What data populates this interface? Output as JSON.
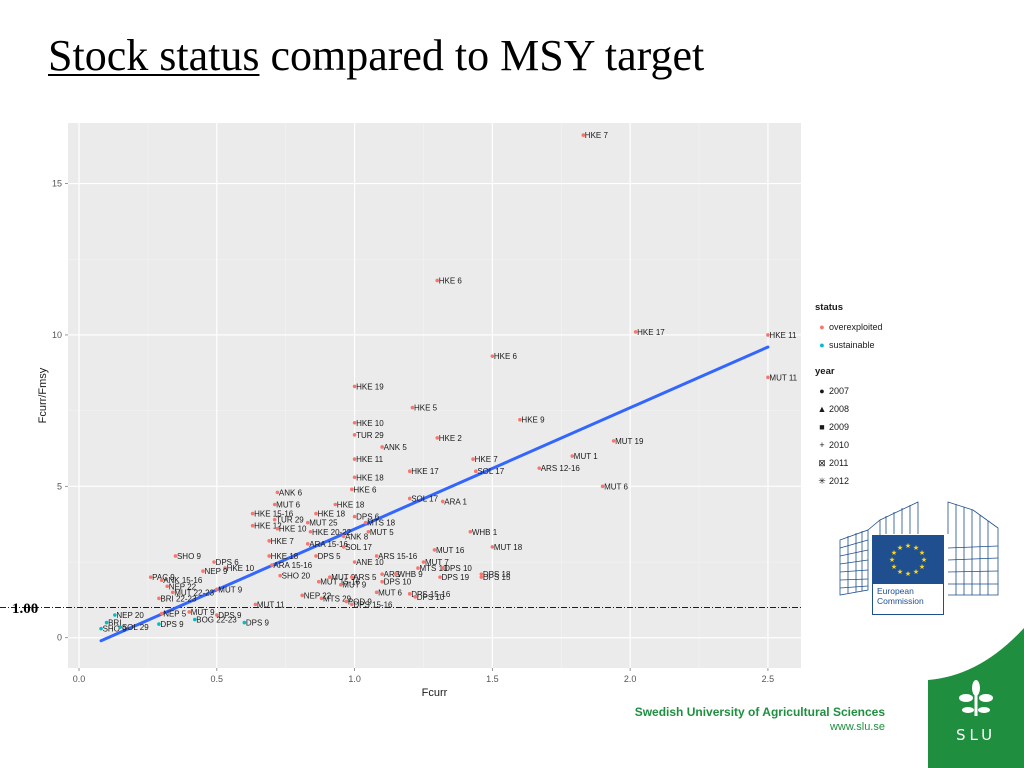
{
  "slide": {
    "title_underlined": "Stock status",
    "title_rest": " compared to MSY target",
    "ref_line_label": "1.00",
    "institution": "Swedish University of Agricultural Sciences",
    "url": "www.slu.se",
    "ec_name": "European Commission",
    "slu_logo_text": "SLU"
  },
  "legend": {
    "status_title": "status",
    "status_items": [
      {
        "label": "overexploited",
        "color": "#F8766D"
      },
      {
        "label": "sustainable",
        "color": "#00BFC4"
      }
    ],
    "year_title": "year",
    "year_items": [
      {
        "label": "2007",
        "symbol": "●"
      },
      {
        "label": "2008",
        "symbol": "▲"
      },
      {
        "label": "2009",
        "symbol": "■"
      },
      {
        "label": "2010",
        "symbol": "+"
      },
      {
        "label": "2011",
        "symbol": "⊠"
      },
      {
        "label": "2012",
        "symbol": "✳"
      }
    ]
  },
  "chart_data": {
    "type": "scatter",
    "xlabel": "Fcurr",
    "ylabel": "Fcurr/Fmsy",
    "xlim": [
      -0.04,
      2.62
    ],
    "ylim": [
      -1.0,
      17.0
    ],
    "xticks": [
      0.0,
      0.5,
      1.0,
      1.5,
      2.0,
      2.5
    ],
    "yticks": [
      0,
      5,
      10,
      15
    ],
    "xtick_labels": [
      "0.0",
      "0.5",
      "1.0",
      "1.5",
      "2.0",
      "2.5"
    ],
    "ytick_labels": [
      "0",
      "5",
      "10",
      "15"
    ],
    "reference_line": {
      "y": 1.0,
      "style": "dotdash"
    },
    "fit_line": {
      "x": [
        0.08,
        2.5
      ],
      "y": [
        -0.1,
        9.6
      ],
      "color": "#3366FF"
    },
    "background": "#EBEBEB",
    "grid": true,
    "colors": {
      "overexploited": "#F8766D",
      "sustainable": "#00BFC4"
    },
    "points": [
      {
        "x": 1.83,
        "y": 16.6,
        "label": "HKE 7",
        "status": "overexploited"
      },
      {
        "x": 1.3,
        "y": 11.8,
        "label": "HKE 6",
        "status": "overexploited"
      },
      {
        "x": 2.02,
        "y": 10.1,
        "label": "HKE 17",
        "status": "overexploited"
      },
      {
        "x": 2.5,
        "y": 10.0,
        "label": "HKE 11",
        "status": "overexploited"
      },
      {
        "x": 1.5,
        "y": 9.3,
        "label": "HKE 6",
        "status": "overexploited"
      },
      {
        "x": 2.5,
        "y": 8.6,
        "label": "MUT 11",
        "status": "overexploited"
      },
      {
        "x": 1.0,
        "y": 8.3,
        "label": "HKE 19",
        "status": "overexploited"
      },
      {
        "x": 1.21,
        "y": 7.6,
        "label": "HKE 5",
        "status": "overexploited"
      },
      {
        "x": 1.0,
        "y": 7.1,
        "label": "HKE 10",
        "status": "overexploited"
      },
      {
        "x": 1.6,
        "y": 7.2,
        "label": "HKE 9",
        "status": "overexploited"
      },
      {
        "x": 1.0,
        "y": 6.7,
        "label": "TUR 29",
        "status": "overexploited"
      },
      {
        "x": 1.3,
        "y": 6.6,
        "label": "HKE 2",
        "status": "overexploited"
      },
      {
        "x": 1.1,
        "y": 6.3,
        "label": "ANK 5",
        "status": "overexploited"
      },
      {
        "x": 1.94,
        "y": 6.5,
        "label": "MUT 19",
        "status": "overexploited"
      },
      {
        "x": 1.0,
        "y": 5.9,
        "label": "HKE 11",
        "status": "overexploited"
      },
      {
        "x": 1.43,
        "y": 5.9,
        "label": "HKE 7",
        "status": "overexploited"
      },
      {
        "x": 1.79,
        "y": 6.0,
        "label": "MUT 1",
        "status": "overexploited"
      },
      {
        "x": 1.2,
        "y": 5.5,
        "label": "HKE 17",
        "status": "overexploited"
      },
      {
        "x": 1.44,
        "y": 5.5,
        "label": "SOL 17",
        "status": "overexploited"
      },
      {
        "x": 1.67,
        "y": 5.6,
        "label": "ARS 12-16",
        "status": "overexploited"
      },
      {
        "x": 1.0,
        "y": 5.3,
        "label": "HKE 18",
        "status": "overexploited"
      },
      {
        "x": 0.99,
        "y": 4.9,
        "label": "HKE 6",
        "status": "overexploited"
      },
      {
        "x": 1.9,
        "y": 5.0,
        "label": "MUT 6",
        "status": "overexploited"
      },
      {
        "x": 0.72,
        "y": 4.8,
        "label": "ANK 6",
        "status": "overexploited"
      },
      {
        "x": 1.2,
        "y": 4.6,
        "label": "SOL 17",
        "status": "overexploited"
      },
      {
        "x": 1.32,
        "y": 4.5,
        "label": "ARA 1",
        "status": "overexploited"
      },
      {
        "x": 0.71,
        "y": 4.4,
        "label": "MUT 6",
        "status": "overexploited"
      },
      {
        "x": 0.93,
        "y": 4.4,
        "label": "HKE 18",
        "status": "overexploited"
      },
      {
        "x": 0.63,
        "y": 4.1,
        "label": "HKE 15-16",
        "status": "overexploited"
      },
      {
        "x": 0.86,
        "y": 4.1,
        "label": "HKE 18",
        "status": "overexploited"
      },
      {
        "x": 0.71,
        "y": 3.9,
        "label": "TUR 29",
        "status": "overexploited"
      },
      {
        "x": 1.0,
        "y": 4.0,
        "label": "DPS 6",
        "status": "overexploited"
      },
      {
        "x": 0.83,
        "y": 3.8,
        "label": "MUT 25",
        "status": "overexploited"
      },
      {
        "x": 1.04,
        "y": 3.8,
        "label": "MTS 18",
        "status": "overexploited"
      },
      {
        "x": 0.63,
        "y": 3.7,
        "label": "HKE 12",
        "status": "overexploited"
      },
      {
        "x": 0.72,
        "y": 3.6,
        "label": "HKE 10",
        "status": "overexploited"
      },
      {
        "x": 1.05,
        "y": 3.5,
        "label": "MUT 5",
        "status": "overexploited"
      },
      {
        "x": 0.84,
        "y": 3.5,
        "label": "HKE 20-22",
        "status": "overexploited"
      },
      {
        "x": 1.42,
        "y": 3.5,
        "label": "WHB 1",
        "status": "overexploited"
      },
      {
        "x": 0.96,
        "y": 3.35,
        "label": "ANK 8",
        "status": "overexploited"
      },
      {
        "x": 0.69,
        "y": 3.2,
        "label": "HKE 7",
        "status": "overexploited"
      },
      {
        "x": 0.83,
        "y": 3.1,
        "label": "ARA 15-16",
        "status": "overexploited"
      },
      {
        "x": 0.96,
        "y": 3.0,
        "label": "SOL 17",
        "status": "overexploited"
      },
      {
        "x": 1.5,
        "y": 3.0,
        "label": "MUT 18",
        "status": "overexploited"
      },
      {
        "x": 1.29,
        "y": 2.9,
        "label": "MUT 16",
        "status": "overexploited"
      },
      {
        "x": 0.35,
        "y": 2.7,
        "label": "SHO 9",
        "status": "overexploited"
      },
      {
        "x": 0.69,
        "y": 2.7,
        "label": "HKE 18",
        "status": "overexploited"
      },
      {
        "x": 0.86,
        "y": 2.7,
        "label": "DPS 5",
        "status": "overexploited"
      },
      {
        "x": 1.08,
        "y": 2.7,
        "label": "ARS 15-16",
        "status": "overexploited"
      },
      {
        "x": 0.49,
        "y": 2.5,
        "label": "DPS 6",
        "status": "overexploited"
      },
      {
        "x": 1.0,
        "y": 2.5,
        "label": "ANE 10",
        "status": "overexploited"
      },
      {
        "x": 1.25,
        "y": 2.5,
        "label": "MUT 7",
        "status": "overexploited"
      },
      {
        "x": 0.53,
        "y": 2.3,
        "label": "HKE 10",
        "status": "overexploited"
      },
      {
        "x": 0.7,
        "y": 2.4,
        "label": "ARA 15-16",
        "status": "overexploited"
      },
      {
        "x": 1.23,
        "y": 2.3,
        "label": "MTS 10",
        "status": "overexploited"
      },
      {
        "x": 1.32,
        "y": 2.3,
        "label": "DPS 10",
        "status": "overexploited"
      },
      {
        "x": 0.45,
        "y": 2.2,
        "label": "NEP 9",
        "status": "overexploited"
      },
      {
        "x": 0.26,
        "y": 2.0,
        "label": "PAC 9",
        "status": "overexploited"
      },
      {
        "x": 0.73,
        "y": 2.05,
        "label": "SHO 20",
        "status": "overexploited"
      },
      {
        "x": 0.91,
        "y": 2.0,
        "label": "MUT 9",
        "status": "overexploited"
      },
      {
        "x": 0.99,
        "y": 2.0,
        "label": "ARS 5",
        "status": "overexploited"
      },
      {
        "x": 1.1,
        "y": 2.1,
        "label": "ARS",
        "status": "overexploited"
      },
      {
        "x": 1.15,
        "y": 2.1,
        "label": "WHB 9",
        "status": "overexploited"
      },
      {
        "x": 1.46,
        "y": 2.1,
        "label": "DPS 18",
        "status": "overexploited"
      },
      {
        "x": 0.3,
        "y": 1.9,
        "label": "ANK 15-16",
        "status": "overexploited"
      },
      {
        "x": 1.31,
        "y": 2.0,
        "label": "DPS 19",
        "status": "overexploited"
      },
      {
        "x": 1.46,
        "y": 2.0,
        "label": "DPS 15",
        "status": "overexploited"
      },
      {
        "x": 0.87,
        "y": 1.85,
        "label": "MUT 15-16",
        "status": "overexploited"
      },
      {
        "x": 1.1,
        "y": 1.85,
        "label": "DPS 10",
        "status": "overexploited"
      },
      {
        "x": 0.32,
        "y": 1.7,
        "label": "NEP 22",
        "status": "overexploited"
      },
      {
        "x": 0.95,
        "y": 1.75,
        "label": "MUT 9",
        "status": "overexploited"
      },
      {
        "x": 0.5,
        "y": 1.6,
        "label": "MUT 9",
        "status": "overexploited"
      },
      {
        "x": 1.08,
        "y": 1.5,
        "label": "MUT 6",
        "status": "overexploited"
      },
      {
        "x": 1.2,
        "y": 1.45,
        "label": "DPS 15-16",
        "status": "overexploited"
      },
      {
        "x": 1.22,
        "y": 1.35,
        "label": "DPS 10",
        "status": "overexploited"
      },
      {
        "x": 0.81,
        "y": 1.4,
        "label": "NEP 22",
        "status": "overexploited"
      },
      {
        "x": 0.34,
        "y": 1.5,
        "label": "MUT 22-23",
        "status": "overexploited"
      },
      {
        "x": 0.88,
        "y": 1.3,
        "label": "MTS 29",
        "status": "overexploited"
      },
      {
        "x": 0.97,
        "y": 1.2,
        "label": "POD 9",
        "status": "overexploited"
      },
      {
        "x": 0.29,
        "y": 1.3,
        "label": "BRI 22-23",
        "status": "overexploited"
      },
      {
        "x": 0.99,
        "y": 1.1,
        "label": "DPS 15-16",
        "status": "overexploited"
      },
      {
        "x": 0.64,
        "y": 1.1,
        "label": "MUT 11",
        "status": "overexploited"
      },
      {
        "x": 0.3,
        "y": 0.8,
        "label": "NEP 5",
        "status": "overexploited"
      },
      {
        "x": 0.4,
        "y": 0.85,
        "label": "MUT 9",
        "status": "overexploited"
      },
      {
        "x": 0.13,
        "y": 0.75,
        "label": "NEP 20",
        "status": "sustainable"
      },
      {
        "x": 0.5,
        "y": 0.75,
        "label": "DPS 9",
        "status": "overexploited"
      },
      {
        "x": 0.42,
        "y": 0.6,
        "label": "BOG 22-23",
        "status": "sustainable"
      },
      {
        "x": 0.1,
        "y": 0.5,
        "label": "BRI",
        "status": "sustainable"
      },
      {
        "x": 0.29,
        "y": 0.45,
        "label": "DPS 9",
        "status": "sustainable"
      },
      {
        "x": 0.6,
        "y": 0.5,
        "label": "DPS 9",
        "status": "sustainable"
      },
      {
        "x": 0.08,
        "y": 0.3,
        "label": "SHO 9",
        "status": "sustainable"
      },
      {
        "x": 0.15,
        "y": 0.35,
        "label": "SOL 29",
        "status": "sustainable"
      }
    ]
  }
}
